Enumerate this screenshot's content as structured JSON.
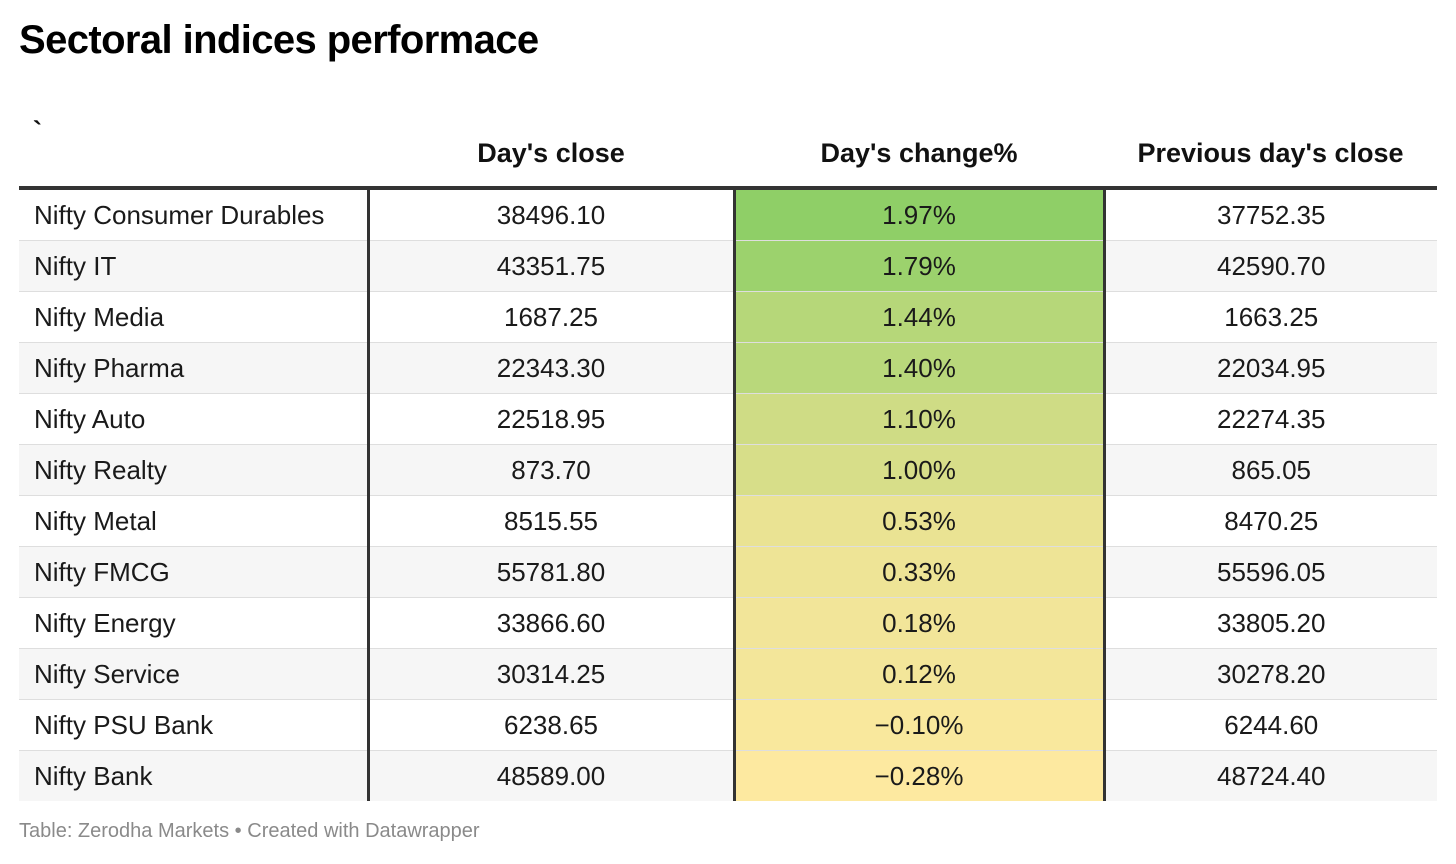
{
  "title": "Sectoral indices performace",
  "footer": {
    "source": "Table: Zerodha Markets",
    "separator": "•",
    "credit": "Created with Datawrapper"
  },
  "heat_colors": {
    "high": "#8fcf67",
    "mid": "#e2e08e",
    "low": "#fde9a0"
  },
  "chart_data": {
    "type": "table",
    "columns": [
      "`",
      "Day's close",
      "Day's change%",
      "Previous day's close"
    ],
    "rows": [
      {
        "name": "Nifty Consumer Durables",
        "close": "38496.10",
        "change": "1.97%",
        "change_value": 1.97,
        "prev_close": "37752.35"
      },
      {
        "name": "Nifty IT",
        "close": "43351.75",
        "change": "1.79%",
        "change_value": 1.79,
        "prev_close": "42590.70"
      },
      {
        "name": "Nifty Media",
        "close": "1687.25",
        "change": "1.44%",
        "change_value": 1.44,
        "prev_close": "1663.25"
      },
      {
        "name": "Nifty Pharma",
        "close": "22343.30",
        "change": "1.40%",
        "change_value": 1.4,
        "prev_close": "22034.95"
      },
      {
        "name": "Nifty Auto",
        "close": "22518.95",
        "change": "1.10%",
        "change_value": 1.1,
        "prev_close": "22274.35"
      },
      {
        "name": "Nifty Realty",
        "close": "873.70",
        "change": "1.00%",
        "change_value": 1.0,
        "prev_close": "865.05"
      },
      {
        "name": "Nifty Metal",
        "close": "8515.55",
        "change": "0.53%",
        "change_value": 0.53,
        "prev_close": "8470.25"
      },
      {
        "name": "Nifty FMCG",
        "close": "55781.80",
        "change": "0.33%",
        "change_value": 0.33,
        "prev_close": "55596.05"
      },
      {
        "name": "Nifty Energy",
        "close": "33866.60",
        "change": "0.18%",
        "change_value": 0.18,
        "prev_close": "33805.20"
      },
      {
        "name": "Nifty Service",
        "close": "30314.25",
        "change": "0.12%",
        "change_value": 0.12,
        "prev_close": "30278.20"
      },
      {
        "name": "Nifty PSU Bank",
        "close": "6238.65",
        "change": "−0.10%",
        "change_value": -0.1,
        "prev_close": "6244.60"
      },
      {
        "name": "Nifty Bank",
        "close": "48589.00",
        "change": "−0.28%",
        "change_value": -0.28,
        "prev_close": "48724.40"
      }
    ]
  }
}
